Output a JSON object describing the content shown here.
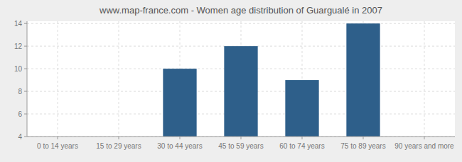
{
  "chart_data": {
    "type": "bar",
    "title": "www.map-france.com - Women age distribution of Guargualé in 2007",
    "categories": [
      "0 to 14 years",
      "15 to 29 years",
      "30 to 44 years",
      "45 to 59 years",
      "60 to 74 years",
      "75 to 89 years",
      "90 years and more"
    ],
    "values": [
      4,
      4,
      10,
      12,
      9,
      14,
      4
    ],
    "color": "#2e5f8a",
    "ylim": [
      4,
      14.2
    ],
    "yticks": [
      4,
      6,
      8,
      10,
      12,
      14
    ],
    "grid": true
  }
}
